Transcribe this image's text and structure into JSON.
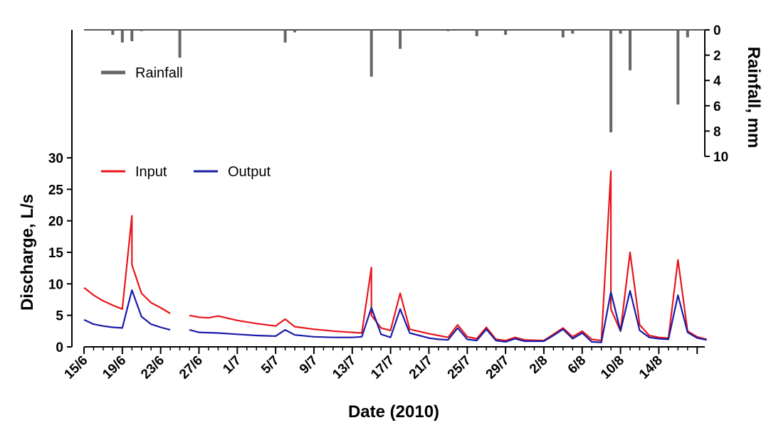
{
  "chart_data": {
    "type": "line",
    "x_type": "date",
    "x_start": "2010-06-15",
    "xlabel": "Date (2010)",
    "x_tick_labels": [
      "15/6",
      "19/6",
      "23/6",
      "27/6",
      "1/7",
      "5/7",
      "9/7",
      "13/7",
      "17/7",
      "21/7",
      "25/7",
      "29/7",
      "2/8",
      "6/8",
      "10/8",
      "14/8"
    ],
    "ylabel": "Discharge, L/s",
    "ylim": [
      0,
      30
    ],
    "y_ticks": [
      0,
      5,
      10,
      15,
      20,
      25,
      30
    ],
    "y2label": "Rainfall, mm",
    "y2lim": [
      0,
      10
    ],
    "y2_ticks": [
      0,
      2,
      4,
      6,
      8,
      10
    ],
    "y2_inverted": true,
    "grid": false,
    "legend": [
      {
        "name": "Input",
        "color": "#e8161b",
        "position": "upper-left"
      },
      {
        "name": "Output",
        "color": "#1a1aa8",
        "position": "upper-left"
      },
      {
        "name": "Rainfall",
        "color": "#666666",
        "position": "top-left"
      }
    ],
    "series": [
      {
        "name": "Input",
        "type": "line",
        "axis": "left",
        "color": "#e8161b",
        "points": [
          [
            "2010-06-15",
            9.4
          ],
          [
            "2010-06-16",
            8.2
          ],
          [
            "2010-06-17",
            7.3
          ],
          [
            "2010-06-18",
            6.6
          ],
          [
            "2010-06-19",
            6.0
          ],
          [
            "2010-06-20",
            20.8
          ],
          [
            "2010-06-20",
            13
          ],
          [
            "2010-06-21",
            8.5
          ],
          [
            "2010-06-22",
            7.0
          ],
          [
            "2010-06-23",
            6.2
          ],
          [
            "2010-06-24",
            5.3
          ],
          null,
          [
            "2010-06-26",
            5.0
          ],
          [
            "2010-06-27",
            4.7
          ],
          [
            "2010-06-28",
            4.6
          ],
          [
            "2010-06-29",
            4.9
          ],
          [
            "2010-07-01",
            4.2
          ],
          [
            "2010-07-03",
            3.7
          ],
          [
            "2010-07-05",
            3.3
          ],
          [
            "2010-07-06",
            4.4
          ],
          [
            "2010-07-07",
            3.2
          ],
          [
            "2010-07-09",
            2.8
          ],
          [
            "2010-07-11",
            2.5
          ],
          [
            "2010-07-13",
            2.3
          ],
          [
            "2010-07-14",
            2.2
          ],
          [
            "2010-07-15",
            12.6
          ],
          [
            "2010-07-15",
            5
          ],
          [
            "2010-07-16",
            3.0
          ],
          [
            "2010-07-17",
            2.6
          ],
          [
            "2010-07-18",
            8.5
          ],
          [
            "2010-07-19",
            2.8
          ],
          [
            "2010-07-21",
            2.1
          ],
          [
            "2010-07-22",
            1.8
          ],
          [
            "2010-07-23",
            1.5
          ],
          [
            "2010-07-24",
            3.5
          ],
          [
            "2010-07-25",
            1.6
          ],
          [
            "2010-07-26",
            1.3
          ],
          [
            "2010-07-27",
            3.1
          ],
          [
            "2010-07-28",
            1.2
          ],
          [
            "2010-07-29",
            1.0
          ],
          [
            "2010-07-30",
            1.5
          ],
          [
            "2010-07-31",
            1.1
          ],
          [
            "2010-08-02",
            1.0
          ],
          [
            "2010-08-03",
            2.0
          ],
          [
            "2010-08-04",
            3.0
          ],
          [
            "2010-08-05",
            1.6
          ],
          [
            "2010-08-06",
            2.5
          ],
          [
            "2010-08-07",
            1.2
          ],
          [
            "2010-08-08",
            1.0
          ],
          [
            "2010-08-09",
            27.9
          ],
          [
            "2010-08-09",
            6
          ],
          [
            "2010-08-10",
            2.5
          ],
          [
            "2010-08-11",
            15.0
          ],
          [
            "2010-08-12",
            3.5
          ],
          [
            "2010-08-13",
            1.8
          ],
          [
            "2010-08-14",
            1.5
          ],
          [
            "2010-08-15",
            1.4
          ],
          [
            "2010-08-16",
            13.8
          ],
          [
            "2010-08-17",
            2.5
          ],
          [
            "2010-08-18",
            1.6
          ],
          [
            "2010-08-19",
            1.2
          ]
        ]
      },
      {
        "name": "Output",
        "type": "line",
        "axis": "left",
        "color": "#1a1aa8",
        "points": [
          [
            "2010-06-15",
            4.3
          ],
          [
            "2010-06-16",
            3.6
          ],
          [
            "2010-06-17",
            3.3
          ],
          [
            "2010-06-18",
            3.1
          ],
          [
            "2010-06-19",
            3.0
          ],
          [
            "2010-06-20",
            9.0
          ],
          [
            "2010-06-21",
            4.8
          ],
          [
            "2010-06-22",
            3.6
          ],
          [
            "2010-06-23",
            3.1
          ],
          [
            "2010-06-24",
            2.7
          ],
          null,
          [
            "2010-06-26",
            2.7
          ],
          [
            "2010-06-27",
            2.3
          ],
          [
            "2010-06-29",
            2.2
          ],
          [
            "2010-07-01",
            2.0
          ],
          [
            "2010-07-03",
            1.8
          ],
          [
            "2010-07-05",
            1.7
          ],
          [
            "2010-07-06",
            2.7
          ],
          [
            "2010-07-07",
            1.9
          ],
          [
            "2010-07-09",
            1.6
          ],
          [
            "2010-07-11",
            1.5
          ],
          [
            "2010-07-13",
            1.5
          ],
          [
            "2010-07-14",
            1.6
          ],
          [
            "2010-07-15",
            6.2
          ],
          [
            "2010-07-16",
            2.0
          ],
          [
            "2010-07-17",
            1.5
          ],
          [
            "2010-07-18",
            6.0
          ],
          [
            "2010-07-19",
            2.2
          ],
          [
            "2010-07-21",
            1.4
          ],
          [
            "2010-07-22",
            1.2
          ],
          [
            "2010-07-23",
            1.1
          ],
          [
            "2010-07-24",
            3.0
          ],
          [
            "2010-07-25",
            1.2
          ],
          [
            "2010-07-26",
            1.0
          ],
          [
            "2010-07-27",
            2.8
          ],
          [
            "2010-07-28",
            1.0
          ],
          [
            "2010-07-29",
            0.8
          ],
          [
            "2010-07-30",
            1.3
          ],
          [
            "2010-07-31",
            0.9
          ],
          [
            "2010-08-02",
            0.9
          ],
          [
            "2010-08-03",
            1.8
          ],
          [
            "2010-08-04",
            2.8
          ],
          [
            "2010-08-05",
            1.3
          ],
          [
            "2010-08-06",
            2.2
          ],
          [
            "2010-08-07",
            0.8
          ],
          [
            "2010-08-08",
            0.7
          ],
          [
            "2010-08-09",
            8.7
          ],
          [
            "2010-08-10",
            2.5
          ],
          [
            "2010-08-11",
            8.9
          ],
          [
            "2010-08-12",
            2.6
          ],
          [
            "2010-08-13",
            1.5
          ],
          [
            "2010-08-14",
            1.3
          ],
          [
            "2010-08-15",
            1.2
          ],
          [
            "2010-08-16",
            8.2
          ],
          [
            "2010-08-17",
            2.3
          ],
          [
            "2010-08-18",
            1.4
          ],
          [
            "2010-08-19",
            1.1
          ]
        ]
      },
      {
        "name": "Rainfall",
        "type": "bar",
        "axis": "right",
        "color": "#666666",
        "points": [
          [
            "2010-06-18",
            0.4
          ],
          [
            "2010-06-19",
            1.0
          ],
          [
            "2010-06-20",
            0.9
          ],
          [
            "2010-06-21",
            0.1
          ],
          [
            "2010-06-25",
            2.2
          ],
          [
            "2010-07-06",
            1.0
          ],
          [
            "2010-07-07",
            0.2
          ],
          [
            "2010-07-15",
            3.7
          ],
          [
            "2010-07-18",
            1.5
          ],
          [
            "2010-07-23",
            0.1
          ],
          [
            "2010-07-26",
            0.5
          ],
          [
            "2010-07-29",
            0.4
          ],
          [
            "2010-08-04",
            0.6
          ],
          [
            "2010-08-05",
            0.3
          ],
          [
            "2010-08-09",
            8.1
          ],
          [
            "2010-08-10",
            0.3
          ],
          [
            "2010-08-11",
            3.2
          ],
          [
            "2010-08-16",
            5.9
          ],
          [
            "2010-08-17",
            0.6
          ]
        ]
      }
    ]
  }
}
